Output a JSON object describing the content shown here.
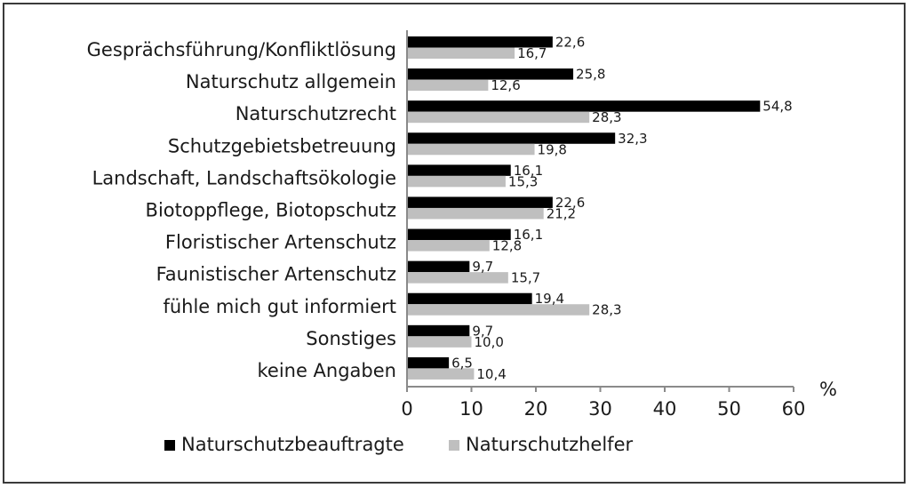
{
  "chart_data": {
    "type": "bar",
    "orientation": "horizontal",
    "categories": [
      "Gesprächsführung/Konfliktlösung",
      "Naturschutz allgemein",
      "Naturschutzrecht",
      "Schutzgebietsbetreuung",
      "Landschaft, Landschaftsökologie",
      "Biotoppflege, Biotopschutz",
      "Floristischer Artenschutz",
      "Faunistischer Artenschutz",
      "fühle mich gut informiert",
      "Sonstiges",
      "keine Angaben"
    ],
    "series": [
      {
        "name": "Naturschutzbeauftragte",
        "color": "#000000",
        "values": [
          22.6,
          25.8,
          54.8,
          32.3,
          16.1,
          22.6,
          16.1,
          9.7,
          19.4,
          9.7,
          6.5
        ],
        "labels": [
          "22,6",
          "25,8",
          "54,8",
          "32,3",
          "16,1",
          "22,6",
          "16,1",
          "9,7",
          "19,4",
          "9,7",
          "6,5"
        ]
      },
      {
        "name": "Naturschutzhelfer",
        "color": "#bfbfbf",
        "values": [
          16.7,
          12.6,
          28.3,
          19.8,
          15.3,
          21.2,
          12.8,
          15.7,
          28.3,
          10.0,
          10.4
        ],
        "labels": [
          "16,7",
          "12,6",
          "28,3",
          "19,8",
          "15,3",
          "21,2",
          "12,8",
          "15,7",
          "28,3",
          "10,0",
          "10,4"
        ]
      }
    ],
    "xlabel": "%",
    "xlim": [
      0,
      60
    ],
    "xticks": [
      0,
      10,
      20,
      30,
      40,
      50,
      60
    ],
    "grid": false,
    "legend": "bottom"
  }
}
